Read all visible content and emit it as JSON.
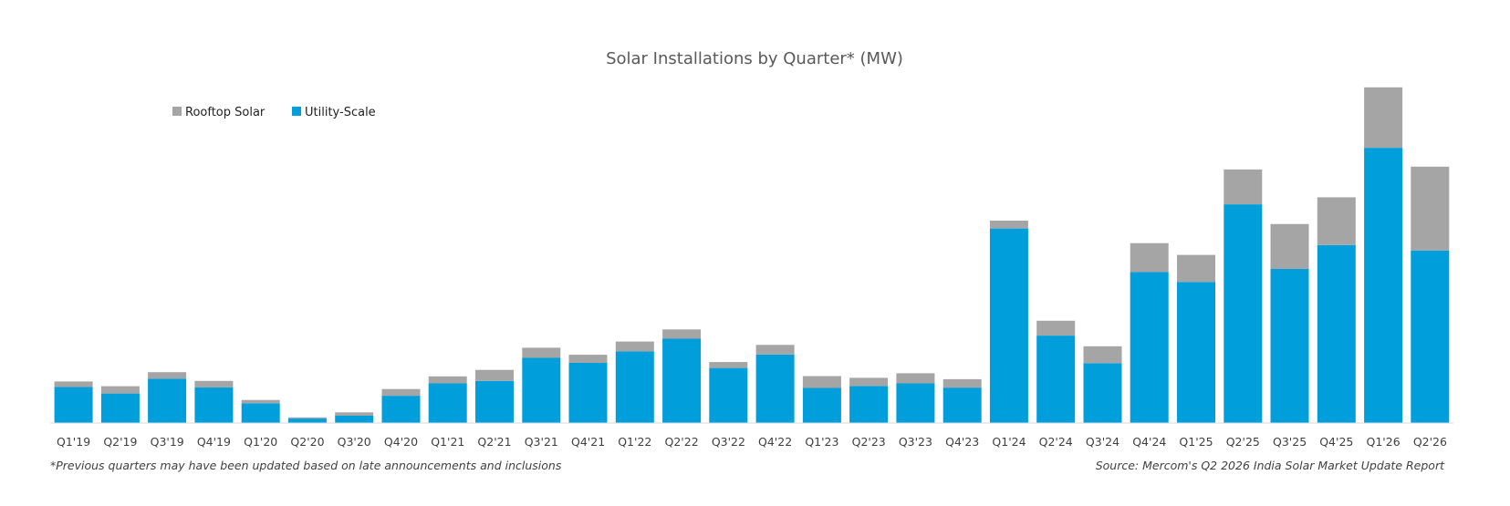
{
  "chart_data": {
    "type": "bar",
    "stacked": true,
    "title": "Solar Installations by Quarter* (MW)",
    "xlabel": "",
    "ylabel": "",
    "ylim": [
      0,
      12000
    ],
    "grid": false,
    "legend_position": "top-left",
    "categories": [
      "Q1'19",
      "Q2'19",
      "Q3'19",
      "Q4'19",
      "Q1'20",
      "Q2'20",
      "Q3'20",
      "Q4'20",
      "Q1'21",
      "Q2'21",
      "Q3'21",
      "Q4'21",
      "Q1'22",
      "Q2'22",
      "Q3'22",
      "Q4'22",
      "Q1'23",
      "Q2'23",
      "Q3'23",
      "Q4'23",
      "Q1'24",
      "Q2'24",
      "Q3'24",
      "Q4'24",
      "Q1'25",
      "Q2'25",
      "Q3'25",
      "Q4'25",
      "Q1'26",
      "Q2'26"
    ],
    "series": [
      {
        "name": "Utility-Scale",
        "color": "#009FDB",
        "values": [
          1280,
          1050,
          1580,
          1270,
          700,
          160,
          260,
          970,
          1410,
          1500,
          2320,
          2140,
          2550,
          3000,
          1960,
          2440,
          1250,
          1320,
          1410,
          1260,
          6920,
          3110,
          2130,
          5370,
          5020,
          7780,
          5480,
          6330,
          9790,
          6140
        ]
      },
      {
        "name": "Rooftop Solar",
        "color": "#A5A5A5",
        "values": [
          200,
          260,
          230,
          230,
          120,
          40,
          120,
          240,
          250,
          390,
          360,
          290,
          350,
          330,
          210,
          340,
          420,
          290,
          360,
          300,
          280,
          530,
          600,
          1030,
          960,
          1240,
          1600,
          1700,
          2150,
          2980
        ]
      }
    ],
    "footnote": "*Previous quarters may have been updated based on late announcements and inclusions",
    "source": "Source: Mercom's Q2 2026 India Solar Market Update Report"
  }
}
